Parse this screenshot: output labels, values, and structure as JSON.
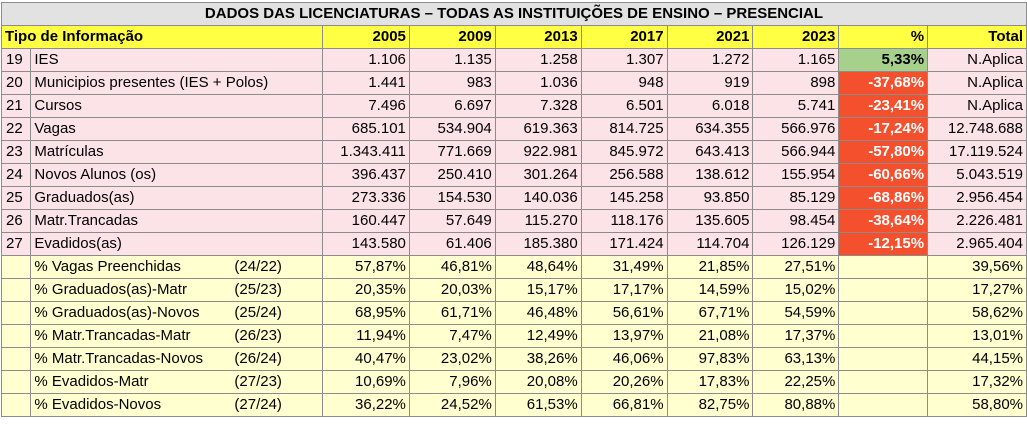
{
  "title": "DADOS DAS LICENCIATURAS – TODAS AS INSTITUIÇÕES DE ENSINO – PRESENCIAL",
  "header": {
    "label": "Tipo de Informação",
    "years": [
      "2005",
      "2009",
      "2013",
      "2017",
      "2021",
      "2023"
    ],
    "pct": "%",
    "total": "Total"
  },
  "rows": [
    {
      "idx": "19",
      "label": "IES",
      "values": [
        "1.106",
        "1.135",
        "1.258",
        "1.307",
        "1.272",
        "1.165"
      ],
      "pct": "5,33%",
      "pct_type": "pos",
      "total": "N.Aplica"
    },
    {
      "idx": "20",
      "label": "Municipios presentes (IES + Polos)",
      "values": [
        "1.441",
        "983",
        "1.036",
        "948",
        "919",
        "898"
      ],
      "pct": "-37,68%",
      "pct_type": "neg",
      "total": "N.Aplica"
    },
    {
      "idx": "21",
      "label": "Cursos",
      "values": [
        "7.496",
        "6.697",
        "7.328",
        "6.501",
        "6.018",
        "5.741"
      ],
      "pct": "-23,41%",
      "pct_type": "neg",
      "total": "N.Aplica"
    },
    {
      "idx": "22",
      "label": "Vagas",
      "values": [
        "685.101",
        "534.904",
        "619.363",
        "814.725",
        "634.355",
        "566.976"
      ],
      "pct": "-17,24%",
      "pct_type": "neg",
      "total": "12.748.688"
    },
    {
      "idx": "23",
      "label": "Matrículas",
      "values": [
        "1.343.411",
        "771.669",
        "922.981",
        "845.972",
        "643.413",
        "566.944"
      ],
      "pct": "-57,80%",
      "pct_type": "neg",
      "total": "17.119.524"
    },
    {
      "idx": "24",
      "label": "Novos Alunos (os)",
      "values": [
        "396.437",
        "250.410",
        "301.264",
        "256.588",
        "138.612",
        "155.954"
      ],
      "pct": "-60,66%",
      "pct_type": "neg",
      "total": "5.043.519"
    },
    {
      "idx": "25",
      "label": "Graduados(as)",
      "values": [
        "273.336",
        "154.530",
        "140.036",
        "145.258",
        "93.850",
        "85.129"
      ],
      "pct": "-68,86%",
      "pct_type": "neg",
      "total": "2.956.454"
    },
    {
      "idx": "26",
      "label": "Matr.Trancadas",
      "values": [
        "160.447",
        "57.649",
        "115.270",
        "118.176",
        "135.605",
        "98.454"
      ],
      "pct": "-38,64%",
      "pct_type": "neg",
      "total": "2.226.481"
    },
    {
      "idx": "27",
      "label": "Evadidos(as)",
      "values": [
        "143.580",
        "61.406",
        "185.380",
        "171.424",
        "114.704",
        "126.129"
      ],
      "pct": "-12,15%",
      "pct_type": "neg",
      "total": "2.965.404"
    }
  ],
  "pct_rows": [
    {
      "label": "% Vagas Preenchidas",
      "ref": "(24/22)",
      "values": [
        "57,87%",
        "46,81%",
        "48,64%",
        "31,49%",
        "21,85%",
        "27,51%"
      ],
      "total": "39,56%"
    },
    {
      "label": "% Graduados(as)-Matr",
      "ref": "(25/23)",
      "values": [
        "20,35%",
        "20,03%",
        "15,17%",
        "17,17%",
        "14,59%",
        "15,02%"
      ],
      "total": "17,27%"
    },
    {
      "label": "% Graduados(as)-Novos",
      "ref": "(25/24)",
      "values": [
        "68,95%",
        "61,71%",
        "46,48%",
        "56,61%",
        "67,71%",
        "54,59%"
      ],
      "total": "58,62%"
    },
    {
      "label": "% Matr.Trancadas-Matr",
      "ref": "(26/23)",
      "values": [
        "11,94%",
        "7,47%",
        "12,49%",
        "13,97%",
        "21,08%",
        "17,37%"
      ],
      "total": "13,01%"
    },
    {
      "label": "% Matr.Trancadas-Novos",
      "ref": "(26/24)",
      "values": [
        "40,47%",
        "23,02%",
        "38,26%",
        "46,06%",
        "97,83%",
        "63,13%"
      ],
      "total": "44,15%"
    },
    {
      "label": "% Evadidos-Matr",
      "ref": "(27/23)",
      "values": [
        "10,69%",
        "7,96%",
        "20,08%",
        "20,26%",
        "17,83%",
        "22,25%"
      ],
      "total": "17,32%"
    },
    {
      "label": "% Evadidos-Novos",
      "ref": "(27/24)",
      "values": [
        "36,22%",
        "24,52%",
        "61,53%",
        "66,81%",
        "82,75%",
        "80,88%"
      ],
      "total": "58,80%"
    }
  ],
  "colors": {
    "title_bg": "#e2e2e2",
    "header_bg": "#ffff44",
    "main_row_bg": "#fbe3e8",
    "pct_row_bg": "#ffffd0",
    "negative_bg": "#f4502e",
    "positive_bg": "#a8d08d"
  }
}
